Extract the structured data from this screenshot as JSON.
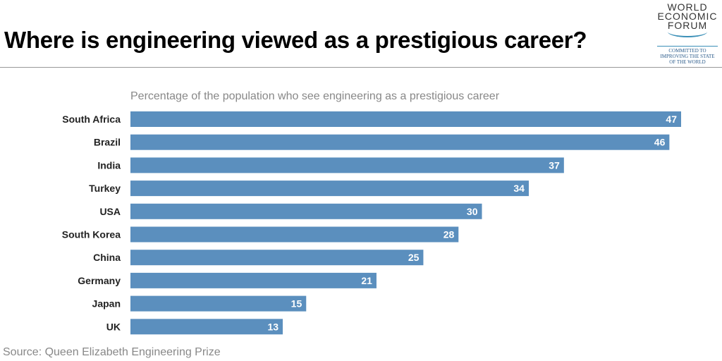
{
  "title": "Where is engineering viewed as a prestigious career?",
  "logo": {
    "lines": [
      "WORLD",
      "ECONOMIC",
      "FORUM"
    ],
    "tagline": [
      "COMMITTED TO",
      "IMPROVING THE STATE",
      "OF THE WORLD"
    ]
  },
  "source": "Source: Queen Elizabeth Engineering Prize",
  "colors": {
    "bar": "#5b8fbe",
    "label": "#ffffff"
  },
  "chart_data": {
    "type": "bar",
    "orientation": "horizontal",
    "title": "Percentage of the population who see engineering as a prestigious career",
    "categories": [
      "South Africa",
      "Brazil",
      "India",
      "Turkey",
      "USA",
      "South Korea",
      "China",
      "Germany",
      "Japan",
      "UK"
    ],
    "values": [
      47,
      46,
      37,
      34,
      30,
      28,
      25,
      21,
      15,
      13
    ],
    "xlim": [
      0,
      47
    ],
    "grid": false,
    "legend": "none"
  }
}
